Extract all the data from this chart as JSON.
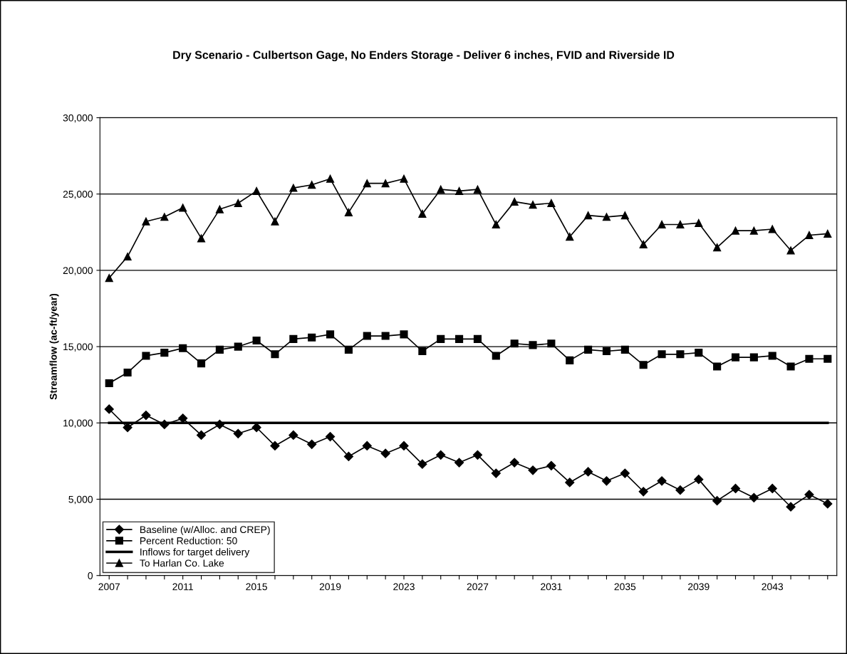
{
  "chart_data": {
    "type": "line",
    "title": "Dry Scenario - Culbertson Gage, No Enders Storage - Deliver 6 inches, FVID and Riverside ID",
    "ylabel": "Streamflow (ac-ft/year)",
    "categories": [
      "2007",
      null,
      null,
      null,
      "2011",
      null,
      null,
      null,
      "2015",
      null,
      null,
      null,
      "2019",
      null,
      null,
      null,
      "2023",
      null,
      null,
      null,
      "2027",
      null,
      null,
      null,
      "2031",
      null,
      null,
      null,
      "2035",
      null,
      null,
      null,
      "2039",
      null,
      null,
      null,
      "2043",
      null,
      null,
      null
    ],
    "series": [
      {
        "name": "Baseline (w/Alloc. and CREP)",
        "color": "#000000",
        "marker": "diamond",
        "values": [
          10900,
          9700,
          10500,
          9900,
          10300,
          9200,
          9900,
          9300,
          9700,
          8500,
          9200,
          8600,
          9100,
          7800,
          8500,
          8000,
          8500,
          7300,
          7900,
          7400,
          7900,
          6700,
          7400,
          6900,
          7200,
          6100,
          6800,
          6200,
          6700,
          5500,
          6200,
          5600,
          6300,
          4900,
          5700,
          5100,
          5700,
          4500,
          5300,
          4700
        ]
      },
      {
        "name": "Percent Reduction: 50",
        "color": "#000000",
        "marker": "square",
        "values": [
          12600,
          13300,
          14400,
          14600,
          14900,
          13900,
          14800,
          15000,
          15400,
          14500,
          15500,
          15600,
          15800,
          14800,
          15700,
          15700,
          15800,
          14700,
          15500,
          15500,
          15500,
          14400,
          15200,
          15100,
          15200,
          14100,
          14800,
          14700,
          14800,
          13800,
          14500,
          14500,
          14600,
          13700,
          14300,
          14300,
          14400,
          13700,
          14200,
          14200
        ]
      },
      {
        "name": "Inflows for target delivery",
        "color": "#000000",
        "marker": "none",
        "values": [
          10000,
          10000,
          10000,
          10000,
          10000,
          10000,
          10000,
          10000,
          10000,
          10000,
          10000,
          10000,
          10000,
          10000,
          10000,
          10000,
          10000,
          10000,
          10000,
          10000,
          10000,
          10000,
          10000,
          10000,
          10000,
          10000,
          10000,
          10000,
          10000,
          10000,
          10000,
          10000,
          10000,
          10000,
          10000,
          10000,
          10000,
          10000,
          10000,
          10000
        ]
      },
      {
        "name": "To Harlan Co. Lake",
        "color": "#000000",
        "marker": "triangle",
        "values": [
          19500,
          20900,
          23200,
          23500,
          24100,
          22100,
          24000,
          24400,
          25200,
          23200,
          25400,
          25600,
          26000,
          23800,
          25700,
          25700,
          26000,
          23700,
          25300,
          25200,
          25300,
          23000,
          24500,
          24300,
          24400,
          22200,
          23600,
          23500,
          23600,
          21700,
          23000,
          23000,
          23100,
          21500,
          22600,
          22600,
          22700,
          21300,
          22300,
          22400
        ]
      }
    ],
    "ylim": [
      0,
      30000
    ],
    "yticks": [
      {
        "value": 0,
        "label": "0"
      },
      {
        "value": 5000,
        "label": "5,000"
      },
      {
        "value": 10000,
        "label": "10,000"
      },
      {
        "value": 15000,
        "label": "15,000"
      },
      {
        "value": 20000,
        "label": "20,000"
      },
      {
        "value": 25000,
        "label": "25,000"
      },
      {
        "value": 30000,
        "label": "30,000"
      }
    ],
    "grid": "y",
    "legend": "bottom left"
  }
}
